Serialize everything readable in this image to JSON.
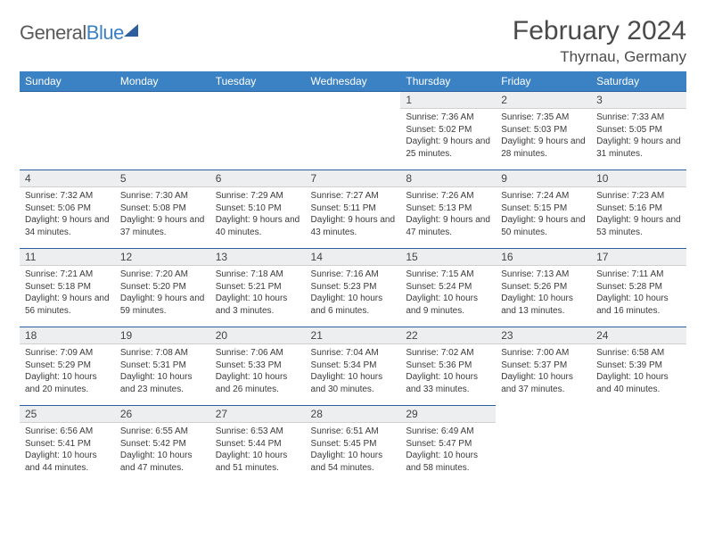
{
  "logo": {
    "text1": "General",
    "text2": "Blue"
  },
  "title": "February 2024",
  "location": "Thyrnau, Germany",
  "colors": {
    "headerBar": "#3b82c4",
    "cellHeader": "#eceeef",
    "rule": "#2b5f9e",
    "text": "#4a4a4a"
  },
  "dow": [
    "Sunday",
    "Monday",
    "Tuesday",
    "Wednesday",
    "Thursday",
    "Friday",
    "Saturday"
  ],
  "startOffset": 4,
  "days": [
    {
      "n": 1,
      "sr": "7:36 AM",
      "ss": "5:02 PM",
      "dl": "9 hours and 25 minutes."
    },
    {
      "n": 2,
      "sr": "7:35 AM",
      "ss": "5:03 PM",
      "dl": "9 hours and 28 minutes."
    },
    {
      "n": 3,
      "sr": "7:33 AM",
      "ss": "5:05 PM",
      "dl": "9 hours and 31 minutes."
    },
    {
      "n": 4,
      "sr": "7:32 AM",
      "ss": "5:06 PM",
      "dl": "9 hours and 34 minutes."
    },
    {
      "n": 5,
      "sr": "7:30 AM",
      "ss": "5:08 PM",
      "dl": "9 hours and 37 minutes."
    },
    {
      "n": 6,
      "sr": "7:29 AM",
      "ss": "5:10 PM",
      "dl": "9 hours and 40 minutes."
    },
    {
      "n": 7,
      "sr": "7:27 AM",
      "ss": "5:11 PM",
      "dl": "9 hours and 43 minutes."
    },
    {
      "n": 8,
      "sr": "7:26 AM",
      "ss": "5:13 PM",
      "dl": "9 hours and 47 minutes."
    },
    {
      "n": 9,
      "sr": "7:24 AM",
      "ss": "5:15 PM",
      "dl": "9 hours and 50 minutes."
    },
    {
      "n": 10,
      "sr": "7:23 AM",
      "ss": "5:16 PM",
      "dl": "9 hours and 53 minutes."
    },
    {
      "n": 11,
      "sr": "7:21 AM",
      "ss": "5:18 PM",
      "dl": "9 hours and 56 minutes."
    },
    {
      "n": 12,
      "sr": "7:20 AM",
      "ss": "5:20 PM",
      "dl": "9 hours and 59 minutes."
    },
    {
      "n": 13,
      "sr": "7:18 AM",
      "ss": "5:21 PM",
      "dl": "10 hours and 3 minutes."
    },
    {
      "n": 14,
      "sr": "7:16 AM",
      "ss": "5:23 PM",
      "dl": "10 hours and 6 minutes."
    },
    {
      "n": 15,
      "sr": "7:15 AM",
      "ss": "5:24 PM",
      "dl": "10 hours and 9 minutes."
    },
    {
      "n": 16,
      "sr": "7:13 AM",
      "ss": "5:26 PM",
      "dl": "10 hours and 13 minutes."
    },
    {
      "n": 17,
      "sr": "7:11 AM",
      "ss": "5:28 PM",
      "dl": "10 hours and 16 minutes."
    },
    {
      "n": 18,
      "sr": "7:09 AM",
      "ss": "5:29 PM",
      "dl": "10 hours and 20 minutes."
    },
    {
      "n": 19,
      "sr": "7:08 AM",
      "ss": "5:31 PM",
      "dl": "10 hours and 23 minutes."
    },
    {
      "n": 20,
      "sr": "7:06 AM",
      "ss": "5:33 PM",
      "dl": "10 hours and 26 minutes."
    },
    {
      "n": 21,
      "sr": "7:04 AM",
      "ss": "5:34 PM",
      "dl": "10 hours and 30 minutes."
    },
    {
      "n": 22,
      "sr": "7:02 AM",
      "ss": "5:36 PM",
      "dl": "10 hours and 33 minutes."
    },
    {
      "n": 23,
      "sr": "7:00 AM",
      "ss": "5:37 PM",
      "dl": "10 hours and 37 minutes."
    },
    {
      "n": 24,
      "sr": "6:58 AM",
      "ss": "5:39 PM",
      "dl": "10 hours and 40 minutes."
    },
    {
      "n": 25,
      "sr": "6:56 AM",
      "ss": "5:41 PM",
      "dl": "10 hours and 44 minutes."
    },
    {
      "n": 26,
      "sr": "6:55 AM",
      "ss": "5:42 PM",
      "dl": "10 hours and 47 minutes."
    },
    {
      "n": 27,
      "sr": "6:53 AM",
      "ss": "5:44 PM",
      "dl": "10 hours and 51 minutes."
    },
    {
      "n": 28,
      "sr": "6:51 AM",
      "ss": "5:45 PM",
      "dl": "10 hours and 54 minutes."
    },
    {
      "n": 29,
      "sr": "6:49 AM",
      "ss": "5:47 PM",
      "dl": "10 hours and 58 minutes."
    }
  ],
  "labels": {
    "sunrise": "Sunrise:",
    "sunset": "Sunset:",
    "daylight": "Daylight:"
  }
}
